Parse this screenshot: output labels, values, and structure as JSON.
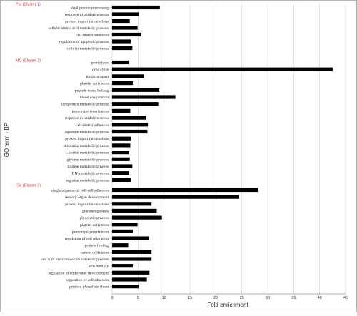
{
  "colors": {
    "bar": "#000000",
    "cluster_label": "#e0261b",
    "grid": "#cfcfcf",
    "frame": "#9a9a9a"
  },
  "chart_data": {
    "type": "bar",
    "orientation": "horizontal",
    "title": "",
    "xlabel": "Fold enrichment",
    "ylabel": "GO term - BP",
    "xlim": [
      0,
      45
    ],
    "xticks": [
      "0",
      "5",
      "10",
      "15",
      "20",
      "25",
      "30",
      "35",
      "40",
      "45"
    ],
    "grid": true,
    "groups": [
      {
        "label": "PM (Cluster 1)",
        "categories": [
          "viral protein processing",
          "response to oxidative stress",
          "protein import into nucleus",
          "cellular amino acid metabolic process",
          "cell-matrix adhesion",
          "regulation of apoptotic process",
          "cellular metabolic process"
        ],
        "values": [
          9.2,
          5.2,
          3.4,
          4.9,
          5.6,
          3.6,
          3.9
        ]
      },
      {
        "label": "MC (Cluster 2)",
        "categories": [
          "proteolysis",
          "urea cycle",
          "lipid transport",
          "platelet activation",
          "peptide cross-linking",
          "blood coagulation",
          "lipoprotein metabolic process",
          "protein polymerization",
          "response to oxidative stress",
          "cell-matrix adhesion",
          "aspartate metabolic process",
          "protein import into nucleus",
          "threonine metabolic process",
          "L-serine metabolic process",
          "glycine metabolic process",
          "proline metabolic process",
          "DNA catabolic process",
          "arginine metabolic process"
        ],
        "values": [
          3.2,
          42.5,
          6.2,
          4.0,
          9.1,
          12.2,
          8.9,
          3.5,
          6.6,
          6.9,
          6.8,
          3.6,
          3.5,
          3.3,
          3.4,
          3.9,
          3.3,
          3.6
        ]
      },
      {
        "label": "CM (Cluster 3)",
        "categories": [
          "single organismal cell-cell adhesion",
          "sensory organ development",
          "protein import into nucleus",
          "gluconeogenesis",
          "glycolytic process",
          "platelet activation",
          "protein polymerization",
          "regulation of cell migration",
          "protein folding",
          "carbon utilization",
          "cell wall macromolecule catabolic process",
          "cell motility",
          "regulation of embryonic development",
          "regulation of cell adhesion",
          "pentose-phosphate shunt"
        ],
        "values": [
          28.2,
          24.5,
          7.6,
          8.6,
          9.6,
          4.9,
          4.0,
          7.1,
          3.1,
          7.6,
          7.6,
          4.0,
          7.2,
          6.7,
          5.1
        ]
      }
    ]
  }
}
